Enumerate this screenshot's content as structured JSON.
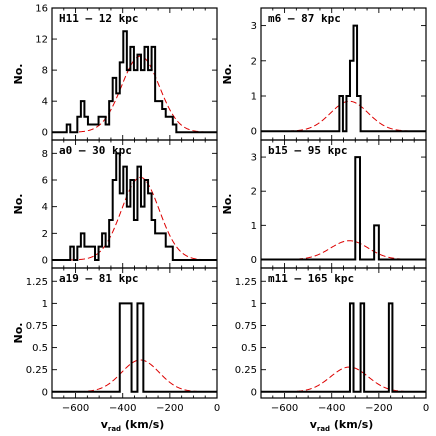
{
  "chart_data": [
    {
      "type": "histogram",
      "title": "H11 – 12 kpc",
      "ylabel": "No.",
      "xlabel": "",
      "xlim": [
        -700,
        0
      ],
      "ylim": [
        -1,
        16
      ],
      "xticks": [
        -600,
        -400,
        -200,
        0
      ],
      "yticks": [
        0,
        4,
        8,
        12,
        16
      ],
      "bin_width": 15,
      "bins": [
        {
          "x": -630,
          "y": 1
        },
        {
          "x": -615,
          "y": 0
        },
        {
          "x": -600,
          "y": 0
        },
        {
          "x": -585,
          "y": 2
        },
        {
          "x": -570,
          "y": 4
        },
        {
          "x": -555,
          "y": 2
        },
        {
          "x": -540,
          "y": 1
        },
        {
          "x": -525,
          "y": 1
        },
        {
          "x": -510,
          "y": 1
        },
        {
          "x": -495,
          "y": 2
        },
        {
          "x": -480,
          "y": 2
        },
        {
          "x": -465,
          "y": 1
        },
        {
          "x": -450,
          "y": 4
        },
        {
          "x": -435,
          "y": 7
        },
        {
          "x": -420,
          "y": 5
        },
        {
          "x": -405,
          "y": 9
        },
        {
          "x": -390,
          "y": 13
        },
        {
          "x": -375,
          "y": 8
        },
        {
          "x": -360,
          "y": 11
        },
        {
          "x": -345,
          "y": 8
        },
        {
          "x": -330,
          "y": 10
        },
        {
          "x": -315,
          "y": 8
        },
        {
          "x": -300,
          "y": 11
        },
        {
          "x": -285,
          "y": 8
        },
        {
          "x": -270,
          "y": 11
        },
        {
          "x": -255,
          "y": 4
        },
        {
          "x": -240,
          "y": 4
        },
        {
          "x": -225,
          "y": 3
        },
        {
          "x": -210,
          "y": 2
        },
        {
          "x": -195,
          "y": 2
        },
        {
          "x": -180,
          "y": 1
        }
      ],
      "gaussian": {
        "mu": -325,
        "sigma": 80,
        "amp": 9.8
      },
      "colors": {
        "histogram": "#000000",
        "gaussian": "#dd0000"
      }
    },
    {
      "type": "histogram",
      "title": "a0 – 30 kpc",
      "ylabel": "No.",
      "xlabel": "",
      "xlim": [
        -700,
        0
      ],
      "ylim": [
        -0.6,
        9
      ],
      "xticks": [
        -600,
        -400,
        -200,
        0
      ],
      "yticks": [
        0,
        2,
        4,
        6,
        8
      ],
      "bin_width": 15,
      "bins": [
        {
          "x": -615,
          "y": 1
        },
        {
          "x": -600,
          "y": 0
        },
        {
          "x": -585,
          "y": 1
        },
        {
          "x": -570,
          "y": 2
        },
        {
          "x": -555,
          "y": 1
        },
        {
          "x": -540,
          "y": 1
        },
        {
          "x": -525,
          "y": 1
        },
        {
          "x": -510,
          "y": 0
        },
        {
          "x": -495,
          "y": 1
        },
        {
          "x": -480,
          "y": 2
        },
        {
          "x": -465,
          "y": 1
        },
        {
          "x": -450,
          "y": 3
        },
        {
          "x": -435,
          "y": 6
        },
        {
          "x": -420,
          "y": 8
        },
        {
          "x": -405,
          "y": 5
        },
        {
          "x": -390,
          "y": 7
        },
        {
          "x": -375,
          "y": 4
        },
        {
          "x": -360,
          "y": 6
        },
        {
          "x": -345,
          "y": 3
        },
        {
          "x": -330,
          "y": 7
        },
        {
          "x": -315,
          "y": 4
        },
        {
          "x": -300,
          "y": 6
        },
        {
          "x": -285,
          "y": 5
        },
        {
          "x": -270,
          "y": 3
        },
        {
          "x": -255,
          "y": 2
        },
        {
          "x": -240,
          "y": 2
        },
        {
          "x": -225,
          "y": 2
        },
        {
          "x": -210,
          "y": 1
        },
        {
          "x": -195,
          "y": 1
        }
      ],
      "gaussian": {
        "mu": -325,
        "sigma": 80,
        "amp": 6.2
      },
      "colors": {
        "histogram": "#000000",
        "gaussian": "#dd0000"
      }
    },
    {
      "type": "histogram",
      "title": "a19 – 81 kpc",
      "ylabel": "No.",
      "xlabel": "v_rad (km/s)",
      "xlim": [
        -700,
        0
      ],
      "ylim": [
        -0.07,
        1.4
      ],
      "xticks": [
        -600,
        -400,
        -200,
        0
      ],
      "xticklabels": [
        "−600",
        "−400",
        "−200",
        "0"
      ],
      "yticks": [
        0,
        0.25,
        0.5,
        0.75,
        1,
        1.25
      ],
      "bin_width": 25,
      "bins": [
        {
          "x": -400,
          "y": 1
        },
        {
          "x": -375,
          "y": 1
        },
        {
          "x": -350,
          "y": 0
        },
        {
          "x": -325,
          "y": 1
        }
      ],
      "gaussian": {
        "mu": -325,
        "sigma": 80,
        "amp": 0.36
      },
      "colors": {
        "histogram": "#000000",
        "gaussian": "#dd0000"
      }
    },
    {
      "type": "histogram",
      "title": "m6 – 87 kpc",
      "ylabel": "No.",
      "xlabel": "",
      "xlim": [
        -700,
        0
      ],
      "ylim": [
        -0.25,
        3.5
      ],
      "xticks": [
        -600,
        -400,
        -200,
        0
      ],
      "yticks": [
        0,
        1,
        2,
        3
      ],
      "bin_width": 15,
      "bins": [
        {
          "x": -360,
          "y": 1
        },
        {
          "x": -345,
          "y": 0
        },
        {
          "x": -330,
          "y": 1
        },
        {
          "x": -315,
          "y": 2
        },
        {
          "x": -300,
          "y": 3
        },
        {
          "x": -285,
          "y": 1
        }
      ],
      "gaussian": {
        "mu": -325,
        "sigma": 80,
        "amp": 0.85
      },
      "colors": {
        "histogram": "#000000",
        "gaussian": "#dd0000"
      }
    },
    {
      "type": "histogram",
      "title": "b15 – 95 kpc",
      "ylabel": "No.",
      "xlabel": "",
      "xlim": [
        -700,
        0
      ],
      "ylim": [
        -0.25,
        3.5
      ],
      "xticks": [
        -600,
        -400,
        -200,
        0
      ],
      "yticks": [
        0,
        1,
        2,
        3
      ],
      "bin_width": 20,
      "bins": [
        {
          "x": -290,
          "y": 3
        },
        {
          "x": -270,
          "y": 0
        },
        {
          "x": -250,
          "y": 0
        },
        {
          "x": -230,
          "y": 0
        },
        {
          "x": -210,
          "y": 1
        }
      ],
      "gaussian": {
        "mu": -325,
        "sigma": 80,
        "amp": 0.55
      },
      "colors": {
        "histogram": "#000000",
        "gaussian": "#dd0000"
      }
    },
    {
      "type": "histogram",
      "title": "m11 – 165 kpc",
      "ylabel": "",
      "xlabel": "v_rad (km/s)",
      "xlim": [
        -700,
        0
      ],
      "ylim": [
        -0.07,
        1.4
      ],
      "xticks": [
        -600,
        -400,
        -200,
        0
      ],
      "xticklabels": [
        "−600",
        "−400",
        "−200",
        "0"
      ],
      "yticks": [
        0,
        0.25,
        0.5,
        0.75,
        1,
        1.25
      ],
      "bin_width": 15,
      "bins": [
        {
          "x": -315,
          "y": 1
        },
        {
          "x": -300,
          "y": 0
        },
        {
          "x": -285,
          "y": 0
        },
        {
          "x": -270,
          "y": 1
        },
        {
          "x": -255,
          "y": 0
        },
        {
          "x": -240,
          "y": 0
        },
        {
          "x": -225,
          "y": 0
        },
        {
          "x": -210,
          "y": 0
        },
        {
          "x": -195,
          "y": 0
        },
        {
          "x": -180,
          "y": 0
        },
        {
          "x": -165,
          "y": 0
        },
        {
          "x": -150,
          "y": 1
        }
      ],
      "gaussian": {
        "mu": -325,
        "sigma": 80,
        "amp": 0.28
      },
      "colors": {
        "histogram": "#000000",
        "gaussian": "#dd0000"
      }
    }
  ]
}
